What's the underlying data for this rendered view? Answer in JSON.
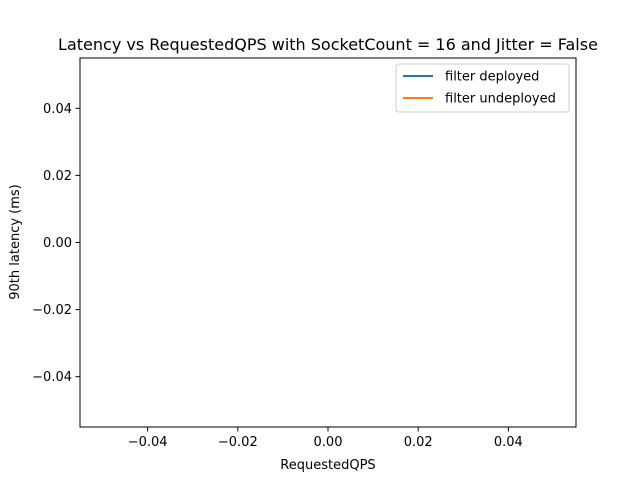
{
  "chart_data": {
    "type": "line",
    "title": "Latency vs RequestedQPS with SocketCount = 16 and Jitter = False",
    "xlabel": "RequestedQPS",
    "ylabel": "90th latency (ms)",
    "xlim": [
      -0.055,
      0.055
    ],
    "ylim": [
      -0.055,
      0.055
    ],
    "x_ticks": [
      -0.04,
      -0.02,
      0.0,
      0.02,
      0.04
    ],
    "x_tick_labels": [
      "−0.04",
      "−0.02",
      "0.00",
      "0.02",
      "0.04"
    ],
    "y_ticks": [
      -0.04,
      -0.02,
      0.0,
      0.02,
      0.04
    ],
    "y_tick_labels": [
      "−0.04",
      "−0.02",
      "0.00",
      "0.02",
      "0.04"
    ],
    "grid": false,
    "legend_position": "top-right",
    "series": [
      {
        "name": "filter deployed",
        "color": "#1f77b4",
        "x": [],
        "y": []
      },
      {
        "name": "filter undeployed",
        "color": "#ff7f0e",
        "x": [],
        "y": []
      }
    ]
  }
}
